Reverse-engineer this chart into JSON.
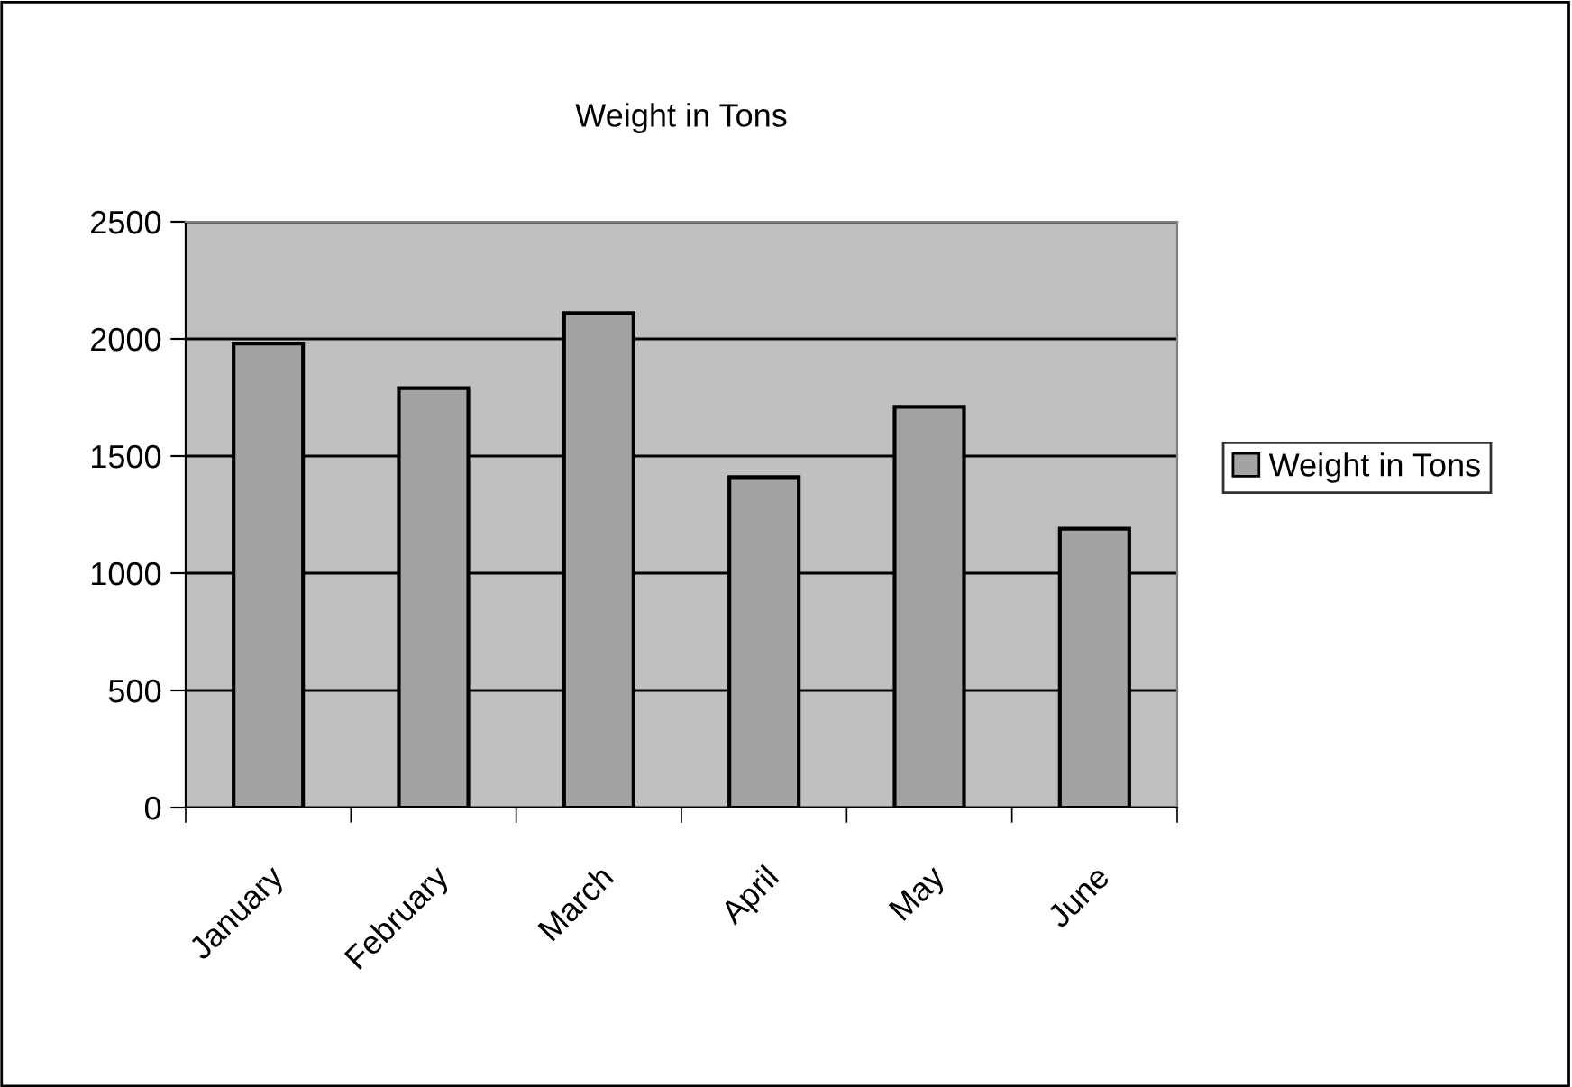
{
  "chart_data": {
    "type": "bar",
    "title": "Weight in Tons",
    "categories": [
      "January",
      "February",
      "March",
      "April",
      "May",
      "June"
    ],
    "series": [
      {
        "name": "Weight in Tons",
        "color": "#a3a3a3",
        "values": [
          1980,
          1790,
          2110,
          1410,
          1710,
          1190
        ]
      }
    ],
    "ylim": [
      0,
      2500
    ],
    "yticks": [
      0,
      500,
      1000,
      1500,
      2000,
      2500
    ],
    "grid": "y",
    "legend": "right"
  }
}
